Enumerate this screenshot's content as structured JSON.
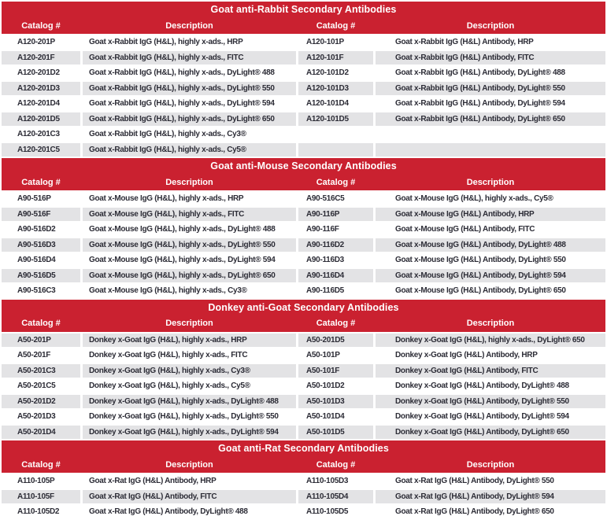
{
  "colors": {
    "header_red": "#CA2130",
    "row_gray": "#E3E3E5",
    "row_text": "#2C2C36",
    "header_text": "#FFFFFF"
  },
  "column_headers": [
    "Catalog #",
    "Description",
    "Catalog #",
    "Description"
  ],
  "sections": [
    {
      "title": "Goat anti-Rabbit Secondary Antibodies",
      "first_row_shade": "white",
      "rows": [
        [
          "A120-201P",
          "Goat x-Rabbit IgG (H&L), highly x-ads., HRP",
          "A120-101P",
          "Goat x-Rabbit IgG (H&L) Antibody, HRP"
        ],
        [
          "A120-201F",
          "Goat x-Rabbit IgG (H&L), highly x-ads., FITC",
          "A120-101F",
          "Goat x-Rabbit IgG (H&L) Antibody, FITC"
        ],
        [
          "A120-201D2",
          "Goat x-Rabbit IgG (H&L), highly x-ads., DyLight® 488",
          "A120-101D2",
          "Goat x-Rabbit IgG (H&L) Antibody, DyLight® 488"
        ],
        [
          "A120-201D3",
          "Goat x-Rabbit IgG (H&L), highly x-ads., DyLight® 550",
          "A120-101D3",
          "Goat x-Rabbit IgG (H&L) Antibody, DyLight® 550"
        ],
        [
          "A120-201D4",
          "Goat x-Rabbit IgG (H&L), highly x-ads., DyLight® 594",
          "A120-101D4",
          "Goat x-Rabbit IgG (H&L) Antibody, DyLight® 594"
        ],
        [
          "A120-201D5",
          "Goat x-Rabbit IgG (H&L), highly x-ads., DyLight® 650",
          "A120-101D5",
          "Goat x-Rabbit IgG (H&L) Antibody, DyLight® 650"
        ],
        [
          "A120-201C3",
          "Goat x-Rabbit IgG (H&L), highly x-ads., Cy3®",
          "",
          ""
        ],
        [
          "A120-201C5",
          "Goat x-Rabbit IgG (H&L), highly x-ads., Cy5®",
          "",
          ""
        ]
      ]
    },
    {
      "title": "Goat anti-Mouse Secondary Antibodies",
      "first_row_shade": "white",
      "rows": [
        [
          "A90-516P",
          "Goat x-Mouse IgG (H&L), highly x-ads., HRP",
          "A90-516C5",
          "Goat x-Mouse IgG (H&L), highly x-ads., Cy5®"
        ],
        [
          "A90-516F",
          "Goat x-Mouse IgG (H&L), highly x-ads., FITC",
          "A90-116P",
          "Goat x-Mouse IgG (H&L) Antibody, HRP"
        ],
        [
          "A90-516D2",
          "Goat x-Mouse IgG (H&L), highly x-ads., DyLight® 488",
          "A90-116F",
          "Goat x-Mouse IgG (H&L) Antibody, FITC"
        ],
        [
          "A90-516D3",
          "Goat x-Mouse IgG (H&L), highly x-ads., DyLight® 550",
          "A90-116D2",
          "Goat x-Mouse IgG (H&L) Antibody, DyLight® 488"
        ],
        [
          "A90-516D4",
          "Goat x-Mouse IgG (H&L), highly x-ads., DyLight® 594",
          "A90-116D3",
          "Goat x-Mouse IgG (H&L) Antibody, DyLight® 550"
        ],
        [
          "A90-516D5",
          "Goat x-Mouse IgG (H&L), highly x-ads., DyLight® 650",
          "A90-116D4",
          "Goat x-Mouse IgG (H&L) Antibody, DyLight® 594"
        ],
        [
          "A90-516C3",
          "Goat x-Mouse IgG (H&L), highly x-ads., Cy3®",
          "A90-116D5",
          "Goat x-Mouse IgG (H&L) Antibody, DyLight® 650"
        ]
      ]
    },
    {
      "title": "Donkey anti-Goat Secondary Antibodies",
      "first_row_shade": "gray",
      "rows": [
        [
          "A50-201P",
          "Donkey x-Goat IgG (H&L), highly x-ads., HRP",
          "A50-201D5",
          "Donkey x-Goat IgG (H&L), highly x-ads., DyLight® 650"
        ],
        [
          "A50-201F",
          "Donkey x-Goat IgG (H&L), highly x-ads., FITC",
          "A50-101P",
          "Donkey x-Goat IgG (H&L) Antibody, HRP"
        ],
        [
          "A50-201C3",
          "Donkey x-Goat IgG (H&L), highly x-ads., Cy3®",
          "A50-101F",
          "Donkey x-Goat IgG (H&L) Antibody, FITC"
        ],
        [
          "A50-201C5",
          "Donkey x-Goat IgG (H&L), highly x-ads., Cy5®",
          "A50-101D2",
          "Donkey x-Goat IgG (H&L) Antibody, DyLight® 488"
        ],
        [
          "A50-201D2",
          "Donkey x-Goat IgG (H&L), highly x-ads., DyLight® 488",
          "A50-101D3",
          "Donkey x-Goat IgG (H&L) Antibody, DyLight® 550"
        ],
        [
          "A50-201D3",
          "Donkey x-Goat IgG (H&L), highly x-ads., DyLight® 550",
          "A50-101D4",
          "Donkey x-Goat IgG (H&L) Antibody, DyLight® 594"
        ],
        [
          "A50-201D4",
          "Donkey x-Goat IgG (H&L), highly x-ads., DyLight® 594",
          "A50-101D5",
          "Donkey x-Goat IgG (H&L) Antibody, DyLight® 650"
        ]
      ]
    },
    {
      "title": "Goat anti-Rat Secondary Antibodies",
      "first_row_shade": "white",
      "rows": [
        [
          "A110-105P",
          "Goat x-Rat IgG (H&L) Antibody, HRP",
          "A110-105D3",
          "Goat x-Rat IgG (H&L) Antibody, DyLight® 550"
        ],
        [
          "A110-105F",
          "Goat x-Rat IgG (H&L) Antibody, FITC",
          "A110-105D4",
          "Goat x-Rat IgG (H&L) Antibody, DyLight® 594"
        ],
        [
          "A110-105D2",
          "Goat x-Rat IgG (H&L) Antibody, DyLight® 488",
          "A110-105D5",
          "Goat x-Rat IgG (H&L) Antibody, DyLight® 650"
        ]
      ]
    }
  ]
}
